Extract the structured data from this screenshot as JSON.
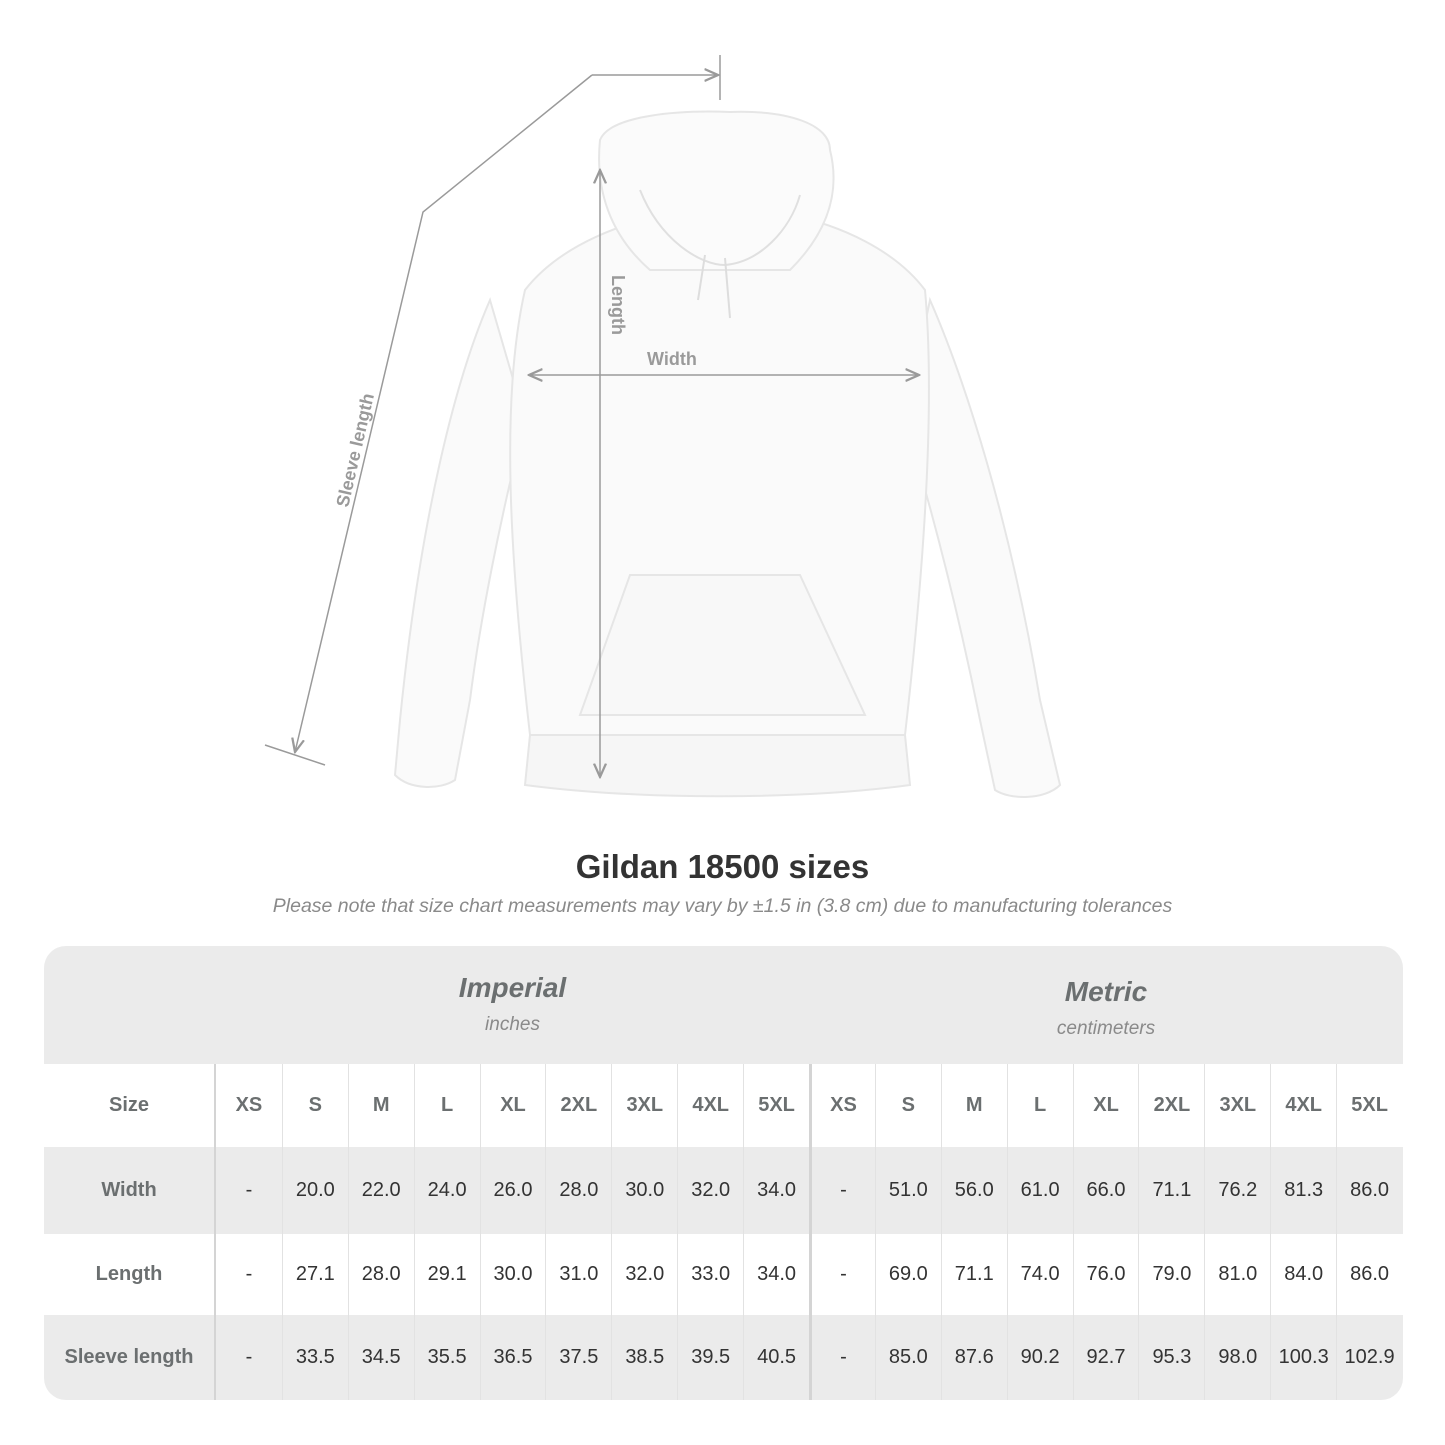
{
  "diagram": {
    "labels": {
      "sleeve": "Sleeve length",
      "length": "Length",
      "width": "Width"
    },
    "line_color": "#9a9a9a"
  },
  "title": "Gildan 18500 sizes",
  "subtitle": "Please note that size chart measurements may vary by ±1.5 in (3.8 cm) due to manufacturing tolerances",
  "table": {
    "imperial": {
      "name": "Imperial",
      "unit": "inches"
    },
    "metric": {
      "name": "Metric",
      "unit": "centimeters"
    },
    "size_label": "Size",
    "sizes": [
      "XS",
      "S",
      "M",
      "L",
      "XL",
      "2XL",
      "3XL",
      "4XL",
      "5XL"
    ],
    "rows": [
      {
        "label": "Width",
        "imperial": [
          "-",
          "20.0",
          "22.0",
          "24.0",
          "26.0",
          "28.0",
          "30.0",
          "32.0",
          "34.0"
        ],
        "metric": [
          "-",
          "51.0",
          "56.0",
          "61.0",
          "66.0",
          "71.1",
          "76.2",
          "81.3",
          "86.0"
        ]
      },
      {
        "label": "Length",
        "imperial": [
          "-",
          "27.1",
          "28.0",
          "29.1",
          "30.0",
          "31.0",
          "32.0",
          "33.0",
          "34.0"
        ],
        "metric": [
          "-",
          "69.0",
          "71.1",
          "74.0",
          "76.0",
          "79.0",
          "81.0",
          "84.0",
          "86.0"
        ]
      },
      {
        "label": "Sleeve length",
        "imperial": [
          "-",
          "33.5",
          "34.5",
          "35.5",
          "36.5",
          "37.5",
          "38.5",
          "39.5",
          "40.5"
        ],
        "metric": [
          "-",
          "85.0",
          "87.6",
          "90.2",
          "92.7",
          "95.3",
          "98.0",
          "100.3",
          "102.9"
        ]
      }
    ],
    "colors": {
      "band": "#ebebeb",
      "header_text": "#6b6f70",
      "value_text": "#333333"
    }
  }
}
